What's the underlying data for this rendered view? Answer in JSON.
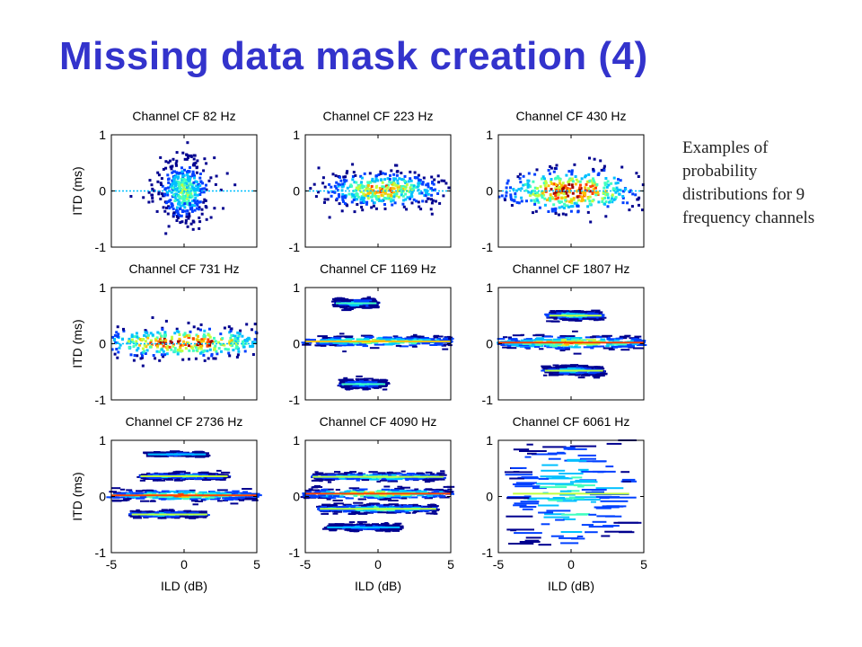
{
  "slide": {
    "title": "Missing data mask creation (4)",
    "caption": "Examples of probability distributions for 9 frequency channels"
  },
  "colormap": [
    "#00008f",
    "#0040ff",
    "#00c0ff",
    "#40ffbf",
    "#c0ff40",
    "#ffc000",
    "#ff4000",
    "#a00000"
  ],
  "chart_data": [
    {
      "type": "heatmap",
      "title": "Channel CF 82 Hz",
      "ylabel": "ITD (ms)",
      "xlabel": "",
      "xlim": [
        -5,
        5
      ],
      "ylim": [
        -1,
        1
      ],
      "xticks": [],
      "yticks": [
        -1,
        0,
        1
      ],
      "blobs": [
        {
          "x": 0,
          "y": 0,
          "sx": 0.9,
          "sy": 0.28,
          "peak": 0.55,
          "kind": "blob"
        }
      ]
    },
    {
      "type": "heatmap",
      "title": "Channel CF 223 Hz",
      "ylabel": "",
      "xlabel": "",
      "xlim": [
        -5,
        5
      ],
      "ylim": [
        -1,
        1
      ],
      "xticks": [],
      "yticks": [
        -1,
        0,
        1
      ],
      "blobs": [
        {
          "x": 0.3,
          "y": 0.02,
          "sx": 2.2,
          "sy": 0.16,
          "peak": 0.8,
          "kind": "blob"
        }
      ]
    },
    {
      "type": "heatmap",
      "title": "Channel CF 430 Hz",
      "ylabel": "",
      "xlabel": "",
      "xlim": [
        -5,
        5
      ],
      "ylim": [
        -1,
        1
      ],
      "xticks": [],
      "yticks": [
        -1,
        0,
        1
      ],
      "blobs": [
        {
          "x": 0,
          "y": 0,
          "sx": 2.5,
          "sy": 0.2,
          "peak": 1.0,
          "kind": "blob"
        }
      ]
    },
    {
      "type": "heatmap",
      "title": "Channel CF 731 Hz",
      "ylabel": "ITD (ms)",
      "xlabel": "",
      "xlim": [
        -5,
        5
      ],
      "ylim": [
        -1,
        1
      ],
      "xticks": [],
      "yticks": [
        -1,
        0,
        1
      ],
      "blobs": [
        {
          "x": 0,
          "y": 0.02,
          "sx": 3.5,
          "sy": 0.13,
          "peak": 1.0,
          "kind": "blob"
        }
      ]
    },
    {
      "type": "heatmap",
      "title": "Channel CF 1169 Hz",
      "ylabel": "",
      "xlabel": "",
      "xlim": [
        -5,
        5
      ],
      "ylim": [
        -1,
        1
      ],
      "xticks": [],
      "yticks": [
        -1,
        0,
        1
      ],
      "blobs": [
        {
          "x": 0,
          "y": 0.04,
          "sx": 5.0,
          "sy": 0.05,
          "peak": 0.7,
          "kind": "band"
        },
        {
          "x": -1.5,
          "y": 0.72,
          "sx": 1.4,
          "sy": 0.04,
          "peak": 0.45,
          "kind": "band"
        },
        {
          "x": -1,
          "y": -0.72,
          "sx": 1.5,
          "sy": 0.04,
          "peak": 0.4,
          "kind": "band"
        }
      ]
    },
    {
      "type": "heatmap",
      "title": "Channel CF 1807 Hz",
      "ylabel": "",
      "xlabel": "",
      "xlim": [
        -5,
        5
      ],
      "ylim": [
        -1,
        1
      ],
      "xticks": [],
      "yticks": [
        -1,
        0,
        1
      ],
      "blobs": [
        {
          "x": 0,
          "y": 0.02,
          "sx": 5.0,
          "sy": 0.06,
          "peak": 0.85,
          "kind": "band"
        },
        {
          "x": 0.3,
          "y": 0.5,
          "sx": 1.8,
          "sy": 0.04,
          "peak": 0.55,
          "kind": "band"
        },
        {
          "x": 0.2,
          "y": -0.48,
          "sx": 2.0,
          "sy": 0.04,
          "peak": 0.5,
          "kind": "band"
        }
      ]
    },
    {
      "type": "heatmap",
      "title": "Channel CF 2736 Hz",
      "ylabel": "ITD (ms)",
      "xlabel": "ILD (dB)",
      "xlim": [
        -5,
        5
      ],
      "ylim": [
        -1,
        1
      ],
      "xticks": [
        -5,
        0,
        5
      ],
      "yticks": [
        -1,
        0,
        1
      ],
      "blobs": [
        {
          "x": 0,
          "y": 0.02,
          "sx": 5.0,
          "sy": 0.05,
          "peak": 0.8,
          "kind": "band"
        },
        {
          "x": 0,
          "y": 0.36,
          "sx": 3.0,
          "sy": 0.03,
          "peak": 0.5,
          "kind": "band"
        },
        {
          "x": -1,
          "y": -0.32,
          "sx": 2.6,
          "sy": 0.03,
          "peak": 0.5,
          "kind": "band"
        },
        {
          "x": -0.5,
          "y": 0.75,
          "sx": 2.0,
          "sy": 0.02,
          "peak": 0.3,
          "kind": "band"
        }
      ]
    },
    {
      "type": "heatmap",
      "title": "Channel CF 4090 Hz",
      "ylabel": "",
      "xlabel": "ILD (dB)",
      "xlim": [
        -5,
        5
      ],
      "ylim": [
        -1,
        1
      ],
      "xticks": [
        -5,
        0,
        5
      ],
      "yticks": [
        -1,
        0,
        1
      ],
      "blobs": [
        {
          "x": 0,
          "y": 0.05,
          "sx": 5.0,
          "sy": 0.05,
          "peak": 0.8,
          "kind": "band"
        },
        {
          "x": 0,
          "y": 0.35,
          "sx": 4.5,
          "sy": 0.04,
          "peak": 0.55,
          "kind": "band"
        },
        {
          "x": 0,
          "y": -0.22,
          "sx": 4.0,
          "sy": 0.04,
          "peak": 0.55,
          "kind": "band"
        },
        {
          "x": -1,
          "y": -0.55,
          "sx": 2.5,
          "sy": 0.03,
          "peak": 0.3,
          "kind": "band"
        }
      ]
    },
    {
      "type": "heatmap",
      "title": "Channel CF 6061 Hz",
      "ylabel": "",
      "xlabel": "ILD (dB)",
      "xlim": [
        -5,
        5
      ],
      "ylim": [
        -1,
        1
      ],
      "xticks": [
        -5,
        0,
        5
      ],
      "yticks": [
        -1,
        0,
        1
      ],
      "blobs": [
        {
          "x": 0,
          "y": 0.05,
          "sx": 4.0,
          "sy": 0.6,
          "peak": 0.5,
          "kind": "lines"
        }
      ]
    }
  ]
}
